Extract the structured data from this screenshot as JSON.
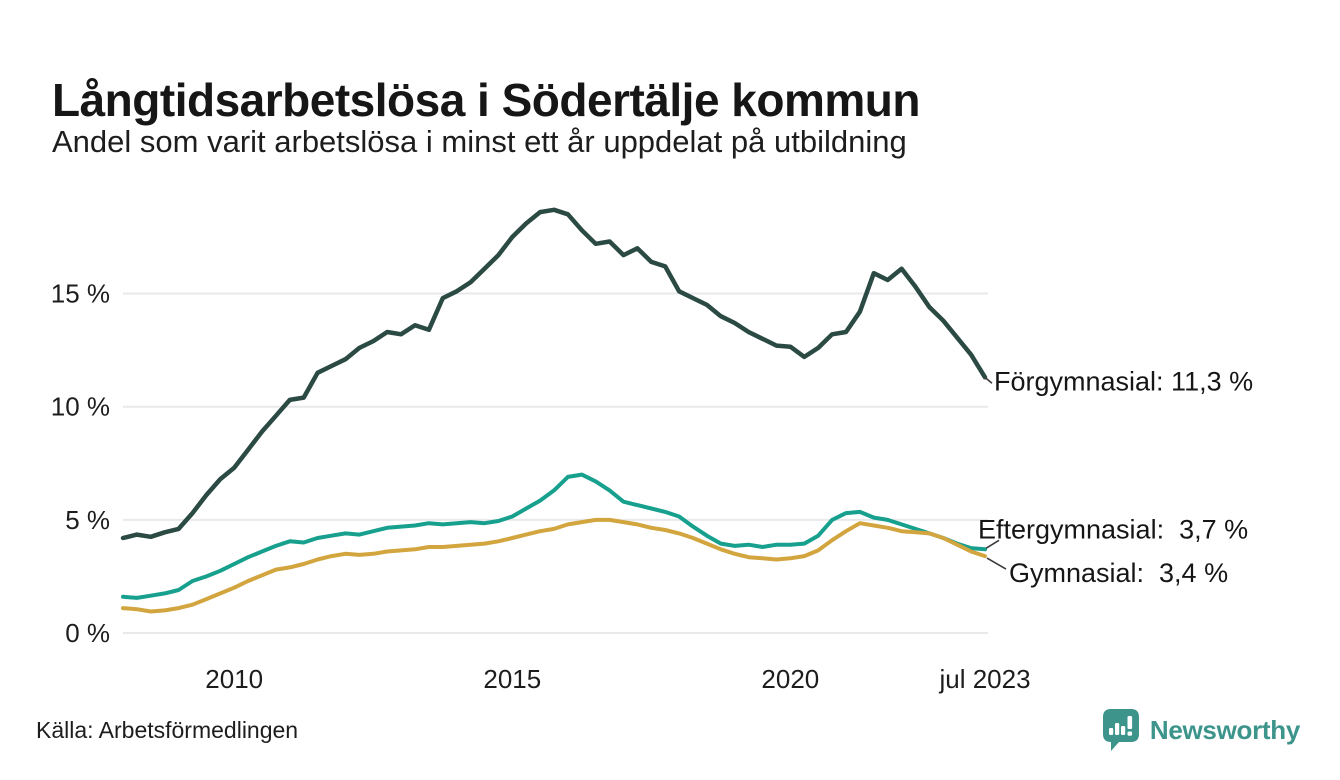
{
  "chart_data": {
    "type": "line",
    "title": "Långtidsarbetslösa i Södertälje kommun",
    "subtitle": "Andel som varit arbetslösa i minst ett år uppdelat på utbildning",
    "source": "Källa: Arbetsförmedlingen",
    "x_range": [
      2008.0,
      2023.5
    ],
    "x_step": 0.25,
    "ylim": [
      0,
      19.5
    ],
    "grid": "horizontal-only",
    "legend_position": "end-of-line-labels",
    "gridline_color": "#e9e9ec",
    "y_ticks": [
      {
        "value": 0,
        "label": "0 %"
      },
      {
        "value": 5,
        "label": "5 %"
      },
      {
        "value": 10,
        "label": "10 %"
      },
      {
        "value": 15,
        "label": "15 %"
      }
    ],
    "x_ticks": [
      {
        "year": 2010,
        "label": "2010"
      },
      {
        "year": 2015,
        "label": "2015"
      },
      {
        "year": 2020,
        "label": "2020"
      },
      {
        "year": 2023.5,
        "label": "jul 2023"
      }
    ],
    "series": [
      {
        "name": "Förgymnasial",
        "color": "#2b4a43",
        "stroke_width": 4.5,
        "end_value": 11.3,
        "end_label": "Förgymnasial: 11,3 %",
        "values": [
          4.2,
          4.35,
          4.25,
          4.45,
          4.6,
          5.3,
          6.1,
          6.8,
          7.3,
          8.1,
          8.9,
          9.6,
          10.3,
          10.4,
          11.5,
          11.8,
          12.1,
          12.6,
          12.9,
          13.3,
          13.2,
          13.6,
          13.4,
          14.8,
          15.1,
          15.5,
          16.1,
          16.7,
          17.5,
          18.1,
          18.6,
          18.7,
          18.5,
          17.8,
          17.2,
          17.3,
          16.7,
          17.0,
          16.4,
          16.2,
          15.1,
          14.8,
          14.5,
          14.0,
          13.7,
          13.3,
          13.0,
          12.7,
          12.65,
          12.2,
          12.6,
          13.2,
          13.3,
          14.2,
          15.9,
          15.6,
          16.1,
          15.3,
          14.4,
          13.8,
          13.05,
          12.3,
          11.3
        ]
      },
      {
        "name": "Eftergymnasial",
        "color": "#17a08d",
        "stroke_width": 4,
        "end_value": 3.7,
        "end_label": "Eftergymnasial:  3,7 %",
        "values": [
          1.6,
          1.55,
          1.65,
          1.75,
          1.9,
          2.3,
          2.5,
          2.75,
          3.05,
          3.35,
          3.6,
          3.85,
          4.05,
          4.0,
          4.2,
          4.3,
          4.4,
          4.35,
          4.5,
          4.65,
          4.7,
          4.75,
          4.85,
          4.8,
          4.85,
          4.9,
          4.85,
          4.95,
          5.15,
          5.5,
          5.85,
          6.3,
          6.9,
          7.0,
          6.7,
          6.3,
          5.8,
          5.65,
          5.5,
          5.35,
          5.15,
          4.7,
          4.3,
          3.95,
          3.85,
          3.9,
          3.8,
          3.9,
          3.9,
          3.95,
          4.3,
          5.0,
          5.3,
          5.35,
          5.1,
          5.0,
          4.8,
          4.6,
          4.4,
          4.2,
          3.95,
          3.75,
          3.7
        ]
      },
      {
        "name": "Gymnasial",
        "color": "#d2a53f",
        "stroke_width": 4,
        "end_value": 3.4,
        "end_label": "Gymnasial:  3,4 %",
        "values": [
          1.1,
          1.05,
          0.95,
          1.0,
          1.1,
          1.25,
          1.5,
          1.75,
          2.0,
          2.3,
          2.55,
          2.8,
          2.9,
          3.05,
          3.25,
          3.4,
          3.5,
          3.45,
          3.5,
          3.6,
          3.65,
          3.7,
          3.8,
          3.8,
          3.85,
          3.9,
          3.95,
          4.05,
          4.2,
          4.35,
          4.5,
          4.6,
          4.8,
          4.9,
          5.0,
          5.0,
          4.9,
          4.8,
          4.65,
          4.55,
          4.4,
          4.2,
          3.95,
          3.7,
          3.5,
          3.35,
          3.3,
          3.25,
          3.3,
          3.4,
          3.65,
          4.1,
          4.5,
          4.85,
          4.75,
          4.65,
          4.5,
          4.45,
          4.4,
          4.2,
          3.9,
          3.6,
          3.4
        ]
      }
    ]
  },
  "branding": {
    "logo_text": "Newsworthy",
    "logo_color": "#3c948b"
  }
}
